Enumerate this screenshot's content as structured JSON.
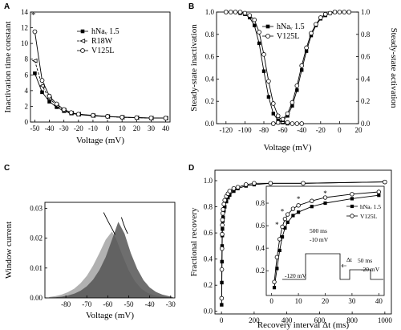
{
  "chart_data": [
    {
      "panel": "A",
      "type": "line",
      "xlabel": "Voltage (mV)",
      "ylabel": "Inactivation time constant",
      "xlim": [
        -53,
        43
      ],
      "ylim": [
        0,
        14
      ],
      "xticks": [
        "-50",
        "-40",
        "-30",
        "-20",
        "-10",
        "0",
        "10",
        "20",
        "30",
        "40"
      ],
      "yticks": [
        "0",
        "2",
        "4",
        "6",
        "8",
        "10",
        "12",
        "14"
      ],
      "annotation": "*",
      "legend": [
        "hNaᵥ 1.5",
        "R18W",
        "V125L"
      ],
      "x": [
        -50,
        -45,
        -40,
        -35,
        -30,
        -25,
        -20,
        -10,
        0,
        10,
        20,
        30,
        40
      ],
      "series": [
        {
          "name": "hNaᵥ 1.5",
          "marker": "square",
          "values": [
            6.2,
            3.8,
            2.6,
            1.9,
            1.4,
            1.1,
            0.95,
            0.8,
            0.7,
            0.6,
            0.55,
            0.5,
            0.5
          ]
        },
        {
          "name": "R18W",
          "marker": "triangle",
          "values": [
            7.8,
            4.6,
            3.0,
            2.1,
            1.5,
            1.15,
            1.0,
            0.82,
            0.7,
            0.6,
            0.55,
            0.5,
            0.5
          ]
        },
        {
          "name": "V125L",
          "marker": "circle",
          "values": [
            11.5,
            5.3,
            3.3,
            2.3,
            1.6,
            1.2,
            1.0,
            0.85,
            0.72,
            0.62,
            0.56,
            0.52,
            0.5
          ]
        }
      ]
    },
    {
      "panel": "B",
      "type": "line",
      "xlabel": "Voltage (mV)",
      "ylabel": "Steady-state inactivation",
      "ylabel_right": "Steady-state activation",
      "xlim": [
        -130,
        20
      ],
      "ylim": [
        0,
        1.0
      ],
      "xticks": [
        "-120",
        "-100",
        "-80",
        "-60",
        "-40",
        "-20",
        "0",
        "20"
      ],
      "yticks": [
        "0.0",
        "0.2",
        "0.4",
        "0.6",
        "0.8",
        "1.0"
      ],
      "legend": [
        "hNaᵥ 1.5",
        "V125L"
      ],
      "series": [
        {
          "name": "hNaᵥ 1.5 inactivation",
          "marker": "square",
          "x": [
            -120,
            -115,
            -110,
            -105,
            -100,
            -95,
            -90,
            -85,
            -80,
            -75,
            -70,
            -65,
            -60,
            -55
          ],
          "values": [
            1.0,
            1.0,
            1.0,
            0.99,
            0.98,
            0.95,
            0.88,
            0.72,
            0.47,
            0.24,
            0.09,
            0.03,
            0.01,
            0.0
          ]
        },
        {
          "name": "V125L inactivation",
          "marker": "circle",
          "x": [
            -120,
            -115,
            -110,
            -105,
            -100,
            -95,
            -90,
            -85,
            -80,
            -75,
            -70,
            -65,
            -60,
            -55,
            -50,
            -45,
            -40
          ],
          "values": [
            1.0,
            1.0,
            1.0,
            1.0,
            0.99,
            0.97,
            0.93,
            0.82,
            0.62,
            0.38,
            0.18,
            0.07,
            0.02,
            0.01,
            0.0,
            0.0,
            0.0
          ]
        },
        {
          "name": "hNaᵥ 1.5 activation",
          "marker": "square",
          "x": [
            -70,
            -65,
            -60,
            -55,
            -50,
            -45,
            -40,
            -35,
            -30,
            -25,
            -20,
            -15,
            -10,
            -5,
            0,
            5,
            10
          ],
          "values": [
            0.0,
            0.01,
            0.03,
            0.07,
            0.16,
            0.3,
            0.48,
            0.65,
            0.79,
            0.88,
            0.94,
            0.97,
            0.99,
            1.0,
            1.0,
            1.0,
            1.0
          ]
        },
        {
          "name": "V125L activation",
          "marker": "circle",
          "x": [
            -70,
            -65,
            -60,
            -55,
            -50,
            -45,
            -40,
            -35,
            -30,
            -25,
            -20,
            -15,
            -10,
            -5,
            0,
            5,
            10
          ],
          "values": [
            0.0,
            0.01,
            0.04,
            0.09,
            0.19,
            0.34,
            0.52,
            0.68,
            0.81,
            0.89,
            0.95,
            0.98,
            0.99,
            1.0,
            1.0,
            1.0,
            1.0
          ]
        }
      ]
    },
    {
      "panel": "C",
      "type": "area",
      "xlabel": "Voltage (mV)",
      "ylabel": "Window current",
      "xlim": [
        -90,
        -28
      ],
      "ylim": [
        0,
        0.032
      ],
      "xticks": [
        "-80",
        "-70",
        "-60",
        "-50",
        "-40",
        "-30"
      ],
      "yticks": [
        "0.00",
        "0.01",
        "0.02",
        "0.03"
      ],
      "series": [
        {
          "name": "area1",
          "color": "#a3a3a3",
          "x": [
            -88,
            -85,
            -82,
            -79,
            -76,
            -73,
            -70,
            -67,
            -64,
            -61,
            -58,
            -56,
            -53,
            -50,
            -47,
            -44,
            -41,
            -38,
            -35,
            -32,
            -30
          ],
          "values": [
            0.0003,
            0.0006,
            0.0011,
            0.0019,
            0.0031,
            0.0049,
            0.0074,
            0.0108,
            0.015,
            0.0195,
            0.0222,
            0.0198,
            0.0142,
            0.0092,
            0.0055,
            0.0031,
            0.0017,
            0.0009,
            0.0005,
            0.0003,
            0.0002
          ]
        },
        {
          "name": "area2",
          "color": "#555555",
          "x": [
            -88,
            -85,
            -82,
            -79,
            -76,
            -73,
            -70,
            -67,
            -64,
            -61,
            -58,
            -55,
            -52,
            -49,
            -46,
            -43,
            -40,
            -37,
            -34,
            -31,
            -29
          ],
          "values": [
            0.0001,
            0.0002,
            0.0004,
            0.0008,
            0.0014,
            0.0024,
            0.0039,
            0.0061,
            0.0093,
            0.0137,
            0.0195,
            0.0255,
            0.0215,
            0.015,
            0.0098,
            0.006,
            0.0035,
            0.002,
            0.0011,
            0.0006,
            0.0003
          ]
        }
      ],
      "peak_lines": [
        {
          "x": [
            -62,
            -60,
            -58,
            -56.5
          ],
          "values": [
            0.0286,
            0.0258,
            0.0232,
            0.0212
          ]
        },
        {
          "x": [
            -53.5,
            -52.5,
            -51.5,
            -50.5
          ],
          "values": [
            0.027,
            0.0248,
            0.023,
            0.0215
          ]
        }
      ]
    },
    {
      "panel": "D",
      "type": "line",
      "xlabel": "Recovery interval Δt (ms)",
      "ylabel": "Fractional recovery",
      "xlim": [
        -40,
        1040
      ],
      "ylim": [
        -0.02,
        1.08
      ],
      "xticks": [
        "0",
        "200",
        "400",
        "600",
        "800",
        "1000"
      ],
      "yticks": [
        "0.0",
        "0.2",
        "0.4",
        "0.6",
        "0.8",
        "1.0"
      ],
      "series": [
        {
          "name": "hNaᵥ 1.5",
          "marker": "square",
          "x": [
            1,
            2,
            3,
            4,
            5,
            6,
            8,
            10,
            15,
            20,
            30,
            40,
            50,
            75,
            100,
            150,
            200,
            300,
            500,
            1000
          ],
          "values": [
            0.05,
            0.22,
            0.38,
            0.5,
            0.58,
            0.63,
            0.69,
            0.72,
            0.77,
            0.8,
            0.84,
            0.87,
            0.89,
            0.92,
            0.94,
            0.96,
            0.97,
            0.98,
            0.98,
            0.99
          ]
        },
        {
          "name": "V125L",
          "marker": "circle",
          "x": [
            1,
            2,
            3,
            4,
            5,
            6,
            8,
            10,
            15,
            20,
            30,
            40,
            50,
            75,
            100,
            150,
            200,
            300,
            500,
            1000
          ],
          "values": [
            0.1,
            0.32,
            0.48,
            0.59,
            0.66,
            0.7,
            0.75,
            0.78,
            0.82,
            0.85,
            0.88,
            0.9,
            0.92,
            0.94,
            0.95,
            0.97,
            0.98,
            0.98,
            0.98,
            0.99
          ]
        }
      ],
      "inset": {
        "xlim": [
          -2,
          42
        ],
        "ylim": [
          -0.02,
          0.95
        ],
        "xticks": [
          "0",
          "10",
          "20",
          "30",
          "40"
        ],
        "yticks": [
          "0.2",
          "0.4",
          "0.6",
          "0.8"
        ],
        "legend": [
          "hNaᵥ 1.5",
          "V125L"
        ],
        "stars": [
          {
            "x": 2,
            "y": 0.55
          },
          {
            "x": 4,
            "y": 0.67
          },
          {
            "x": 10,
            "y": 0.78
          },
          {
            "x": 20,
            "y": 0.83
          }
        ],
        "protocol_labels": [
          "500 ms",
          "-10 mV",
          "-120 mV",
          "Δt",
          "50 ms",
          "-20 mV"
        ],
        "series": [
          {
            "name": "hNaᵥ 1.5",
            "marker": "square",
            "x": [
              1,
              2,
              3,
              4,
              5,
              6,
              8,
              10,
              15,
              20,
              30,
              40
            ],
            "values": [
              0.05,
              0.22,
              0.38,
              0.5,
              0.58,
              0.63,
              0.69,
              0.72,
              0.77,
              0.8,
              0.84,
              0.87
            ]
          },
          {
            "name": "V125L",
            "marker": "circle",
            "x": [
              1,
              2,
              3,
              4,
              5,
              6,
              8,
              10,
              15,
              20,
              30,
              40
            ],
            "values": [
              0.1,
              0.32,
              0.48,
              0.59,
              0.66,
              0.7,
              0.75,
              0.78,
              0.82,
              0.85,
              0.88,
              0.9
            ]
          }
        ]
      }
    }
  ]
}
